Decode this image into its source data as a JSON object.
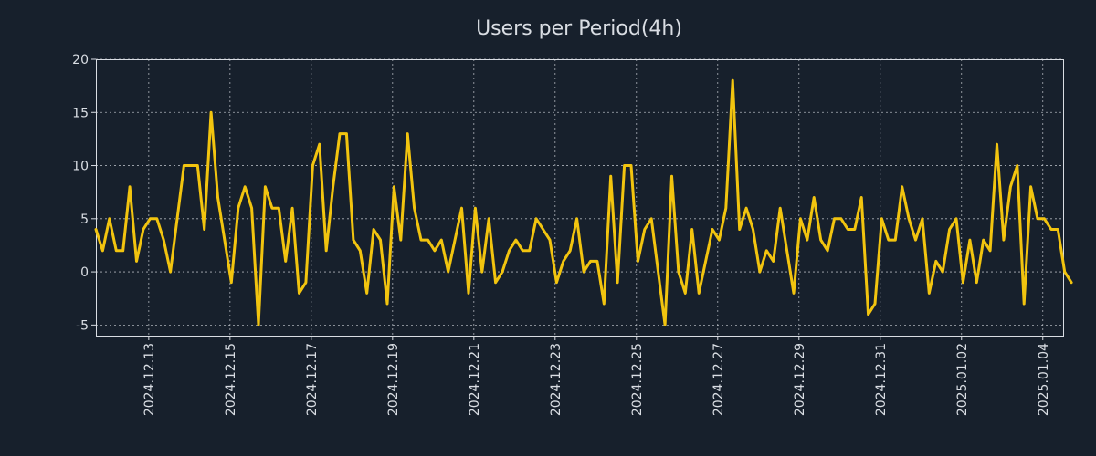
{
  "chart_data": {
    "type": "line",
    "title": "Users per Period(4h)",
    "xlabel": "",
    "ylabel": "",
    "ylim": [
      -6,
      20
    ],
    "yticks": [
      -5,
      0,
      5,
      10,
      15,
      20
    ],
    "grid": true,
    "line_color": "#f2c40f",
    "background_color": "#17202c",
    "x_start_day": 0,
    "x_step_days": 0.1667,
    "xlim_days": [
      0,
      23.8
    ],
    "x_ticks": [
      {
        "day": 1.3,
        "label": "2024.12.13"
      },
      {
        "day": 3.3,
        "label": "2024.12.15"
      },
      {
        "day": 5.3,
        "label": "2024.12.17"
      },
      {
        "day": 7.3,
        "label": "2024.12.19"
      },
      {
        "day": 9.3,
        "label": "2024.12.21"
      },
      {
        "day": 11.3,
        "label": "2024.12.23"
      },
      {
        "day": 13.3,
        "label": "2024.12.25"
      },
      {
        "day": 15.3,
        "label": "2024.12.27"
      },
      {
        "day": 17.3,
        "label": "2024.12.29"
      },
      {
        "day": 19.3,
        "label": "2024.12.31"
      },
      {
        "day": 21.3,
        "label": "2025.01.02"
      },
      {
        "day": 23.3,
        "label": "2025.01.04"
      }
    ],
    "series": [
      {
        "name": "Users",
        "values": [
          4,
          2,
          5,
          2,
          2,
          8,
          1,
          4,
          5,
          5,
          3,
          0,
          5,
          10,
          10,
          10,
          4,
          15,
          7,
          3,
          -1,
          6,
          8,
          6,
          -5,
          8,
          6,
          6,
          1,
          6,
          -2,
          -1,
          10,
          12,
          2,
          8,
          13,
          13,
          3,
          2,
          -2,
          4,
          3,
          -3,
          8,
          3,
          13,
          6,
          3,
          3,
          2,
          3,
          0,
          3,
          6,
          -2,
          6,
          0,
          5,
          -1,
          0,
          2,
          3,
          2,
          2,
          5,
          4,
          3,
          -1,
          1,
          2,
          5,
          0,
          1,
          1,
          -3,
          9,
          -1,
          10,
          10,
          1,
          4,
          5,
          0,
          -5,
          9,
          0,
          -2,
          4,
          -2,
          1,
          4,
          3,
          6,
          18,
          4,
          6,
          4,
          0,
          2,
          1,
          6,
          2,
          -2,
          5,
          3,
          7,
          3,
          2,
          5,
          5,
          4,
          4,
          7,
          -4,
          -3,
          5,
          3,
          3,
          8,
          5,
          3,
          5,
          -2,
          1,
          0,
          4,
          5,
          -1,
          3,
          -1,
          3,
          2,
          12,
          3,
          8,
          10,
          -3,
          8,
          5,
          5,
          4,
          4,
          0,
          -1
        ]
      }
    ]
  }
}
